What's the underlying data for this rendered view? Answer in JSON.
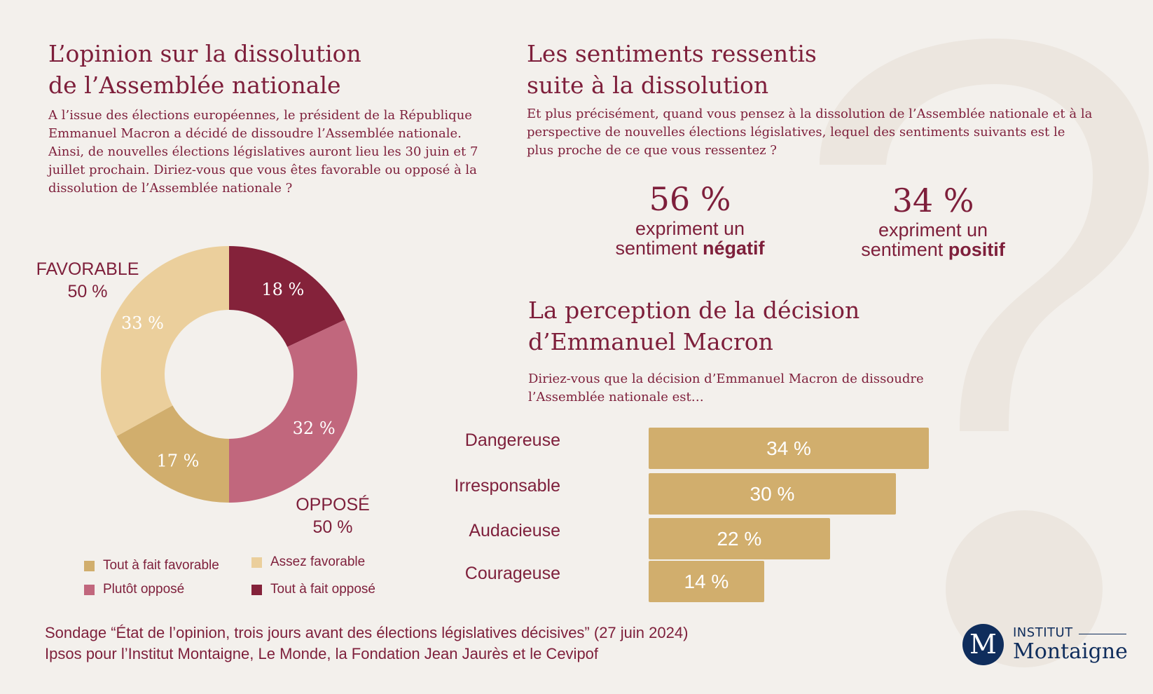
{
  "colors": {
    "text": "#7e1f3b",
    "tout_favorable": "#d1ae6d",
    "assez_favorable": "#ebcf9c",
    "plutot_oppose": "#c1677d",
    "tout_oppose": "#84223a",
    "logo": "#0f2d5c",
    "background": "#f3f0ec"
  },
  "left": {
    "title_line1": "L’opinion sur la dissolution",
    "title_line2": "de l’Assemblée nationale",
    "question": "A l’issue des élections européennes, le président de la République Emmanuel Macron a décidé de dissoudre l’Assemblée nationale. Ainsi, de nouvelles élections législatives auront lieu les 30 juin et 7 juillet prochain. Diriez-vous que vous êtes favorable ou opposé à la dissolution de l’Assemblée nationale ?",
    "favorable_label": "FAVORABLE",
    "favorable_value": "50 %",
    "oppose_label": "OPPOSÉ",
    "oppose_value": "50 %"
  },
  "right": {
    "title_line1": "Les sentiments ressentis",
    "title_line2": "suite à la dissolution",
    "question": "Et plus précisément, quand vous pensez à la dissolution de l’Assemblée nationale et à la perspective de nouvelles élections législatives, lequel des sentiments suivants est le plus proche de ce que vous ressentez ?",
    "negative": {
      "value": "56 %",
      "line1": "expriment un",
      "line2_prefix": "sentiment ",
      "line2_bold": "négatif"
    },
    "positive": {
      "value": "34 %",
      "line1": "expriment un",
      "line2_prefix": "sentiment ",
      "line2_bold": "positif"
    }
  },
  "perception": {
    "title_line1": "La perception de la décision",
    "title_line2": "d’Emmanuel Macron",
    "question": "Diriez-vous que la décision d’Emmanuel Macron de dissoudre l’Assemblée nationale est…"
  },
  "chart_data": [
    {
      "type": "pie",
      "title": "L’opinion sur la dissolution de l’Assemblée nationale",
      "categories": [
        "Tout à fait opposé",
        "Plutôt opposé",
        "Tout à fait favorable",
        "Assez favorable"
      ],
      "values": [
        18,
        32,
        17,
        33
      ],
      "labels": [
        "18 %",
        "32 %",
        "17 %",
        "33 %"
      ],
      "groups": [
        {
          "name": "FAVORABLE",
          "value": 50
        },
        {
          "name": "OPPOSÉ",
          "value": 50
        }
      ],
      "legend": [
        "Tout à fait favorable",
        "Assez favorable",
        "Plutôt opposé",
        "Tout à fait opposé"
      ]
    },
    {
      "type": "bar",
      "title": "La perception de la décision d’Emmanuel Macron",
      "orientation": "horizontal",
      "categories": [
        "Dangereuse",
        "Irresponsable",
        "Audacieuse",
        "Courageuse"
      ],
      "values": [
        34,
        30,
        22,
        14
      ],
      "labels": [
        "34 %",
        "30 %",
        "22 %",
        "14 %"
      ],
      "xlim": [
        0,
        34
      ]
    }
  ],
  "source": {
    "line1": "Sondage “État de l’opinion, trois jours avant des élections législatives décisives” (27 juin 2024)",
    "line2": "Ipsos pour l’Institut Montaigne, Le Monde, la Fondation Jean Jaurès et le Cevipof"
  },
  "logo": {
    "monogram": "M",
    "top": "INSTITUT",
    "bottom": "Montaigne"
  }
}
